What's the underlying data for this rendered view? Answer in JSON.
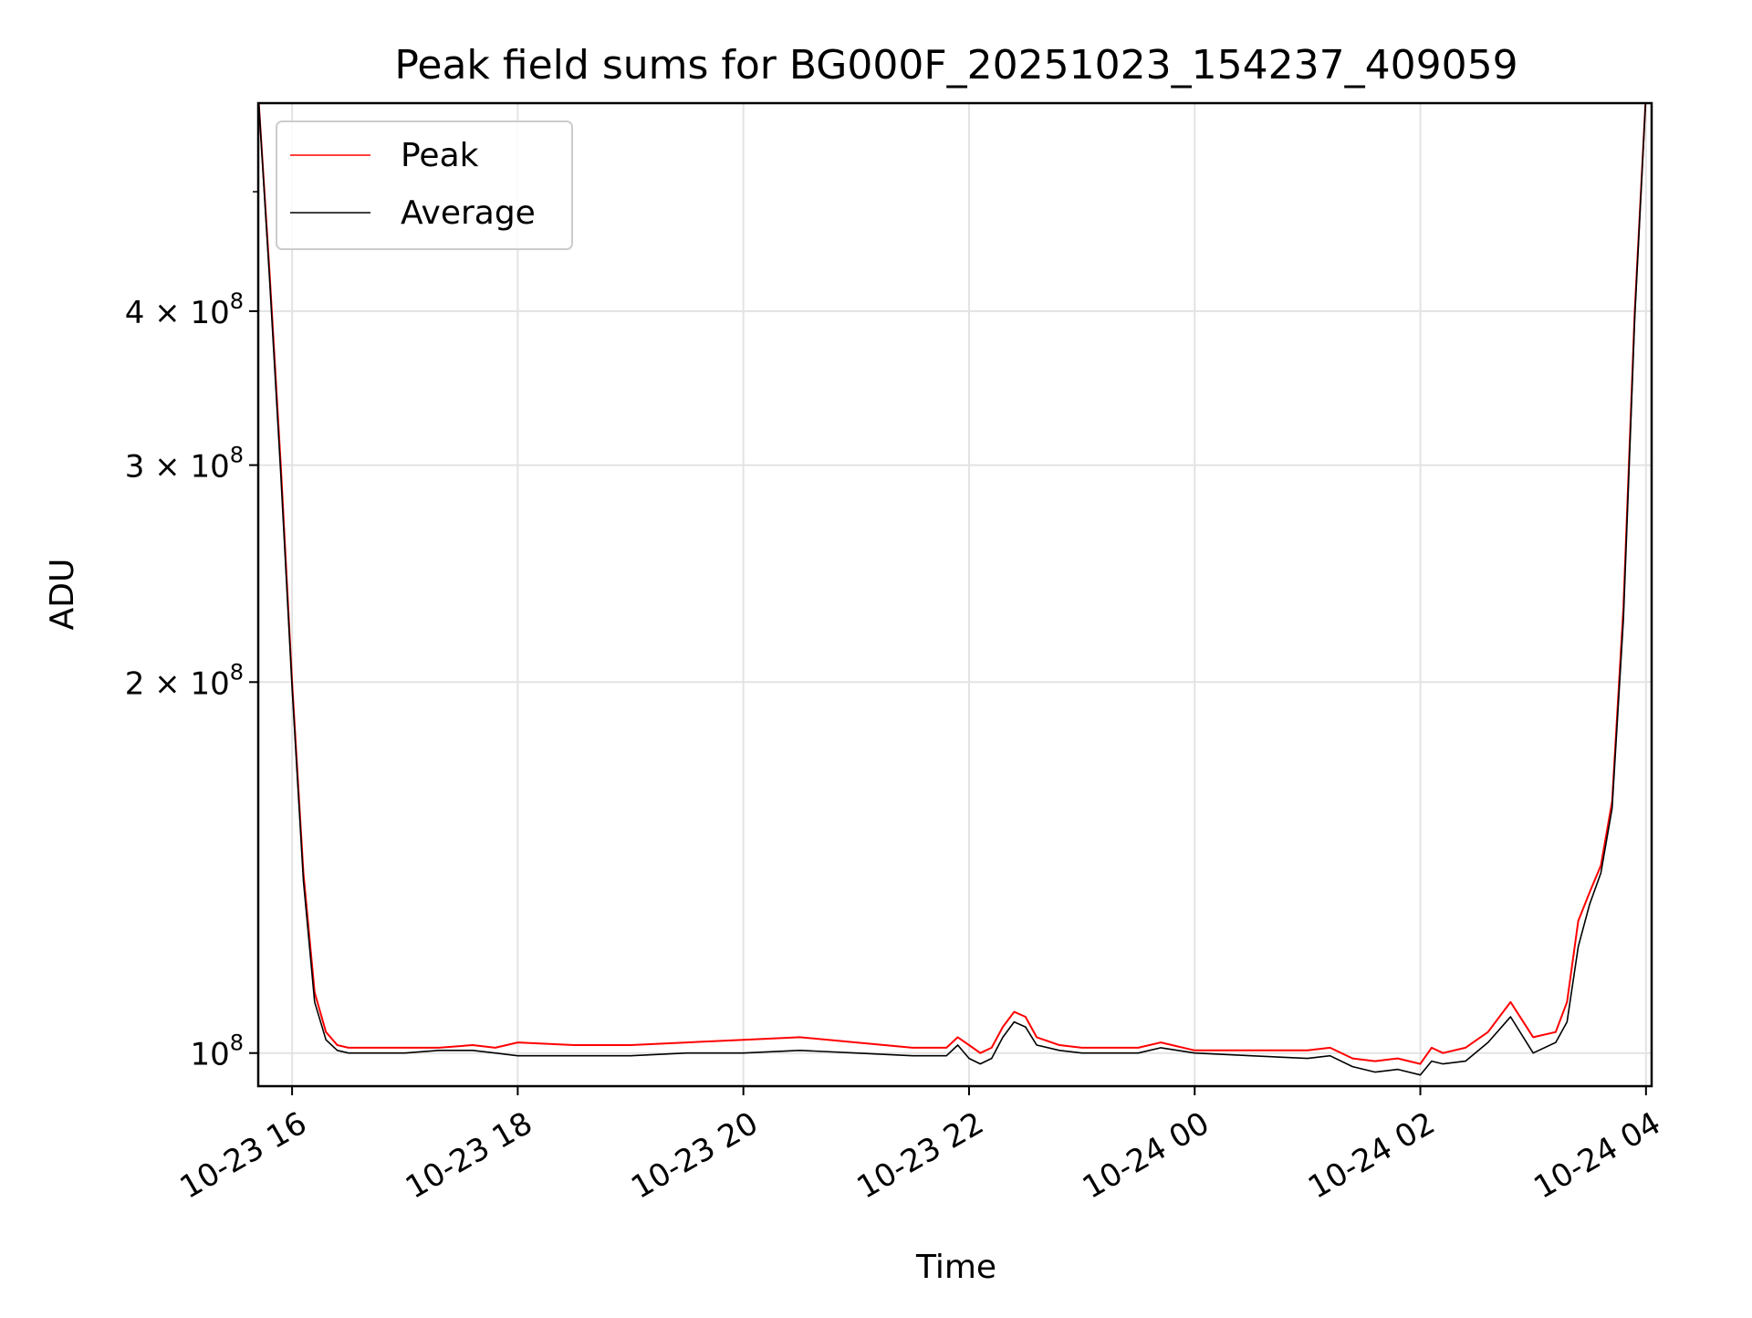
{
  "chart_data": {
    "type": "line",
    "title": "Peak field sums for BG000F_20251023_154237_409059",
    "xlabel": "Time",
    "ylabel": "ADU",
    "y_scale": "log",
    "xlim_hours": [
      15.7,
      28.05
    ],
    "ylim": [
      94000000,
      590000000
    ],
    "grid": true,
    "legend_location": "upper left",
    "x_ticks": [
      {
        "hour": 16,
        "label": "10-23 16"
      },
      {
        "hour": 18,
        "label": "10-23 18"
      },
      {
        "hour": 20,
        "label": "10-23 20"
      },
      {
        "hour": 22,
        "label": "10-23 22"
      },
      {
        "hour": 24,
        "label": "10-24 00"
      },
      {
        "hour": 26,
        "label": "10-24 02"
      },
      {
        "hour": 28,
        "label": "10-24 04"
      }
    ],
    "y_ticks": [
      {
        "value": 100000000,
        "mantissa": "",
        "exp": "8"
      },
      {
        "value": 200000000,
        "mantissa": "2",
        "exp": "8"
      },
      {
        "value": 300000000,
        "mantissa": "3",
        "exp": "8"
      },
      {
        "value": 400000000,
        "mantissa": "4",
        "exp": "8"
      }
    ],
    "series": [
      {
        "name": "Peak",
        "color": "#ff0000",
        "x_hours": [
          15.7,
          15.8,
          15.9,
          16.0,
          16.1,
          16.2,
          16.3,
          16.4,
          16.5,
          16.7,
          17.0,
          17.3,
          17.6,
          17.8,
          18.0,
          18.5,
          19.0,
          19.5,
          20.0,
          20.5,
          21.0,
          21.5,
          21.8,
          21.9,
          22.0,
          22.1,
          22.2,
          22.3,
          22.4,
          22.5,
          22.6,
          22.8,
          23.0,
          23.5,
          23.7,
          24.0,
          24.5,
          25.0,
          25.2,
          25.4,
          25.6,
          25.8,
          26.0,
          26.1,
          26.2,
          26.4,
          26.6,
          26.8,
          27.0,
          27.2,
          27.3,
          27.4,
          27.5,
          27.6,
          27.7,
          27.8,
          27.9,
          28.0
        ],
        "y": [
          600000000,
          430000000,
          300000000,
          200000000,
          140000000,
          112000000,
          104000000,
          101500000,
          101000000,
          101000000,
          101000000,
          101000000,
          101500000,
          101000000,
          102000000,
          101500000,
          101500000,
          102000000,
          102500000,
          103000000,
          102000000,
          101000000,
          101000000,
          103000000,
          101500000,
          100000000,
          101000000,
          105000000,
          108000000,
          107000000,
          103000000,
          101500000,
          101000000,
          101000000,
          102000000,
          100500000,
          100500000,
          100500000,
          101000000,
          99000000,
          98500000,
          99000000,
          98000000,
          101000000,
          100000000,
          101000000,
          104000000,
          110000000,
          103000000,
          104000000,
          110000000,
          128000000,
          135000000,
          142000000,
          160000000,
          230000000,
          400000000,
          600000000
        ]
      },
      {
        "name": "Average",
        "color": "#000000",
        "x_hours": [
          15.7,
          15.8,
          15.9,
          16.0,
          16.1,
          16.2,
          16.3,
          16.4,
          16.5,
          16.7,
          17.0,
          17.3,
          17.6,
          17.8,
          18.0,
          18.5,
          19.0,
          19.5,
          20.0,
          20.5,
          21.0,
          21.5,
          21.8,
          21.9,
          22.0,
          22.1,
          22.2,
          22.3,
          22.4,
          22.5,
          22.6,
          22.8,
          23.0,
          23.5,
          23.7,
          24.0,
          24.5,
          25.0,
          25.2,
          25.4,
          25.6,
          25.8,
          26.0,
          26.1,
          26.2,
          26.4,
          26.6,
          26.8,
          27.0,
          27.2,
          27.3,
          27.4,
          27.5,
          27.6,
          27.7,
          27.8,
          27.9,
          28.0
        ],
        "y": [
          600000000,
          425000000,
          295000000,
          198000000,
          138000000,
          110000000,
          102500000,
          100500000,
          100000000,
          100000000,
          100000000,
          100500000,
          100500000,
          100000000,
          99500000,
          99500000,
          99500000,
          100000000,
          100000000,
          100500000,
          100000000,
          99500000,
          99500000,
          101500000,
          99000000,
          98000000,
          99000000,
          103000000,
          106000000,
          105000000,
          101500000,
          100500000,
          100000000,
          100000000,
          101000000,
          100000000,
          99500000,
          99000000,
          99500000,
          97500000,
          96500000,
          97000000,
          96000000,
          98500000,
          98000000,
          98500000,
          102000000,
          107000000,
          100000000,
          102000000,
          106000000,
          122000000,
          132000000,
          140000000,
          158000000,
          225000000,
          395000000,
          600000000
        ]
      }
    ]
  }
}
